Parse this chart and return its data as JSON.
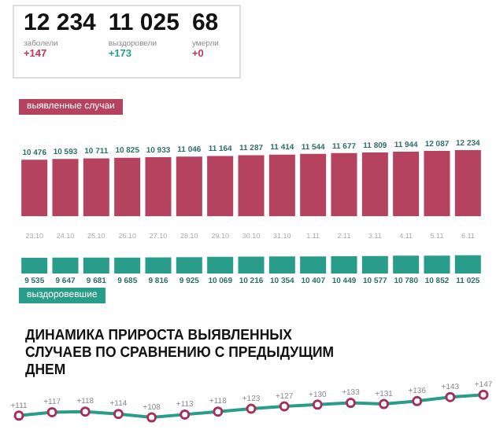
{
  "chart_data": [
    {
      "type": "other",
      "annotations": [
        "12 234",
        "заболели",
        "+147",
        "11 025",
        "выздоровели",
        "+173",
        "68",
        "умерли",
        "+0"
      ],
      "colors": [
        "#c2385e",
        "#2a9d8a",
        "#c2385e"
      ]
    },
    {
      "type": "bar",
      "title": "выявленные случаи",
      "categories": [
        "23.10",
        "24.10",
        "25.10",
        "26.10",
        "27.10",
        "28.10",
        "29.10",
        "30.10",
        "31.10",
        "1.11",
        "2.11",
        "3.11",
        "4.11",
        "5.11",
        "6.11"
      ],
      "values": [
        10476,
        10593,
        10711,
        10825,
        10933,
        11046,
        11164,
        11287,
        11414,
        11544,
        11677,
        11809,
        11944,
        12087,
        12234
      ],
      "value_labels": [
        "10 476",
        "10 593",
        "10 711",
        "10 825",
        "10 933",
        "11 046",
        "11 164",
        "11 287",
        "11 414",
        "11 544",
        "11 677",
        "11 809",
        "11 944",
        "12 087",
        "12 234"
      ],
      "color": "#b5425f",
      "tick_labels": "x"
    },
    {
      "type": "bar",
      "title": "выздоровевшие",
      "categories": [
        "23.10",
        "24.10",
        "25.10",
        "26.10",
        "27.10",
        "28.10",
        "29.10",
        "30.10",
        "31.10",
        "1.11",
        "2.11",
        "3.11",
        "4.11",
        "5.11",
        "6.11"
      ],
      "values": [
        9535,
        9647,
        9681,
        9685,
        9816,
        9925,
        10069,
        10216,
        10354,
        10407,
        10449,
        10577,
        10780,
        10852,
        11025
      ],
      "value_labels": [
        "9 535",
        "9 647",
        "9 681",
        "9 685",
        "9 816",
        "9 925",
        "10 069",
        "10 216",
        "10 354",
        "10 407",
        "10 449",
        "10 577",
        "10 780",
        "10 852",
        "11 025"
      ],
      "color": "#2a9d8a",
      "tick_labels": false
    },
    {
      "type": "line",
      "title": "ДИНАМИКА ПРИРОСТА ВЫЯВЛЕННЫХ СЛУЧАЕВ ПО СРАВНЕНИЮ С ПРЕДЫДУЩИМ ДНЕМ",
      "categories": [
        null,
        null,
        null,
        null,
        null,
        null,
        null,
        null,
        null,
        null,
        null,
        null,
        null,
        null,
        null
      ],
      "values": [
        111,
        117,
        118,
        114,
        108,
        113,
        118,
        123,
        127,
        130,
        133,
        131,
        136,
        143,
        147
      ],
      "value_labels": [
        "+111",
        "+117",
        "+118",
        "+114",
        "+108",
        "+113",
        "+118",
        "+123",
        "+127",
        "+130",
        "+133",
        "+131",
        "+136",
        "+143",
        "+147"
      ],
      "color": "#2a9d8a",
      "marker": "circle",
      "tick_labels": false
    }
  ]
}
